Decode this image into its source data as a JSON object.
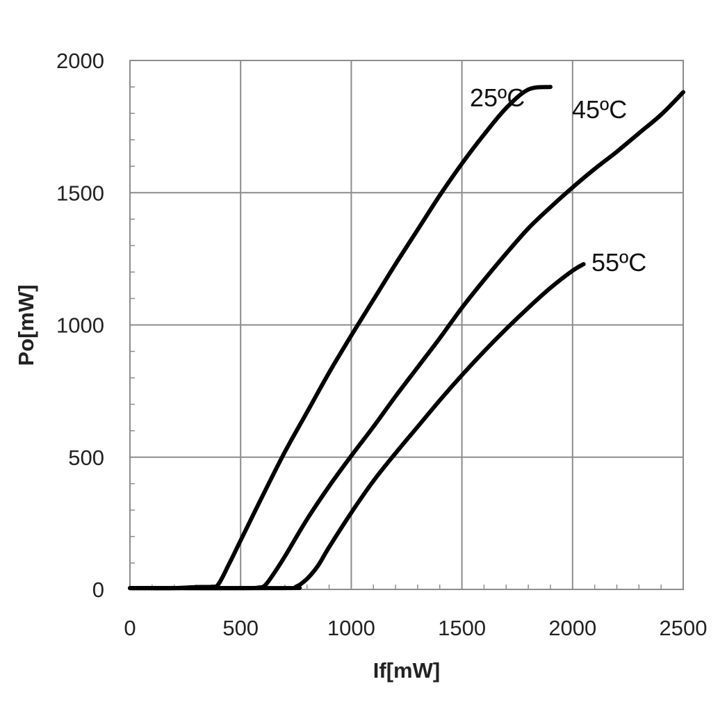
{
  "chart_data": {
    "type": "line",
    "title": "",
    "xlabel": "If[mW]",
    "ylabel": "Po[mW]",
    "xlim": [
      0,
      2500
    ],
    "ylim": [
      0,
      2000
    ],
    "x_ticks": [
      "0",
      "500",
      "1000",
      "1500",
      "2000",
      "2500"
    ],
    "y_ticks": [
      "0",
      "500",
      "1000",
      "1500",
      "2000"
    ],
    "grid": true,
    "legend": "none",
    "series": [
      {
        "name": "25ºC",
        "color": "#000000",
        "points": [
          [
            0,
            5
          ],
          [
            200,
            5
          ],
          [
            300,
            9
          ],
          [
            370,
            10
          ],
          [
            400,
            20
          ],
          [
            450,
            100
          ],
          [
            500,
            185
          ],
          [
            600,
            355
          ],
          [
            700,
            520
          ],
          [
            800,
            670
          ],
          [
            900,
            820
          ],
          [
            1000,
            960
          ],
          [
            1100,
            1095
          ],
          [
            1200,
            1230
          ],
          [
            1300,
            1360
          ],
          [
            1400,
            1490
          ],
          [
            1500,
            1610
          ],
          [
            1600,
            1720
          ],
          [
            1700,
            1820
          ],
          [
            1800,
            1890
          ],
          [
            1900,
            1900
          ]
        ]
      },
      {
        "name": "45ºC",
        "color": "#000000",
        "points": [
          [
            0,
            5
          ],
          [
            500,
            5
          ],
          [
            580,
            7
          ],
          [
            610,
            15
          ],
          [
            650,
            60
          ],
          [
            700,
            125
          ],
          [
            800,
            265
          ],
          [
            900,
            390
          ],
          [
            1000,
            505
          ],
          [
            1100,
            615
          ],
          [
            1200,
            730
          ],
          [
            1300,
            840
          ],
          [
            1400,
            950
          ],
          [
            1500,
            1065
          ],
          [
            1600,
            1170
          ],
          [
            1700,
            1270
          ],
          [
            1800,
            1365
          ],
          [
            1900,
            1445
          ],
          [
            2000,
            1520
          ],
          [
            2100,
            1590
          ],
          [
            2200,
            1655
          ],
          [
            2300,
            1725
          ],
          [
            2400,
            1795
          ],
          [
            2500,
            1880
          ]
        ]
      },
      {
        "name": "55ºC",
        "color": "#000000",
        "points": [
          [
            0,
            5
          ],
          [
            700,
            5
          ],
          [
            750,
            10
          ],
          [
            800,
            40
          ],
          [
            850,
            90
          ],
          [
            900,
            160
          ],
          [
            1000,
            290
          ],
          [
            1100,
            410
          ],
          [
            1200,
            515
          ],
          [
            1300,
            615
          ],
          [
            1400,
            715
          ],
          [
            1500,
            810
          ],
          [
            1600,
            900
          ],
          [
            1700,
            985
          ],
          [
            1800,
            1065
          ],
          [
            1900,
            1140
          ],
          [
            2000,
            1205
          ],
          [
            2050,
            1230
          ]
        ]
      }
    ]
  },
  "curve_labels": [
    {
      "text": "25ºC"
    },
    {
      "text": "45ºC"
    },
    {
      "text": "55ºC"
    }
  ]
}
